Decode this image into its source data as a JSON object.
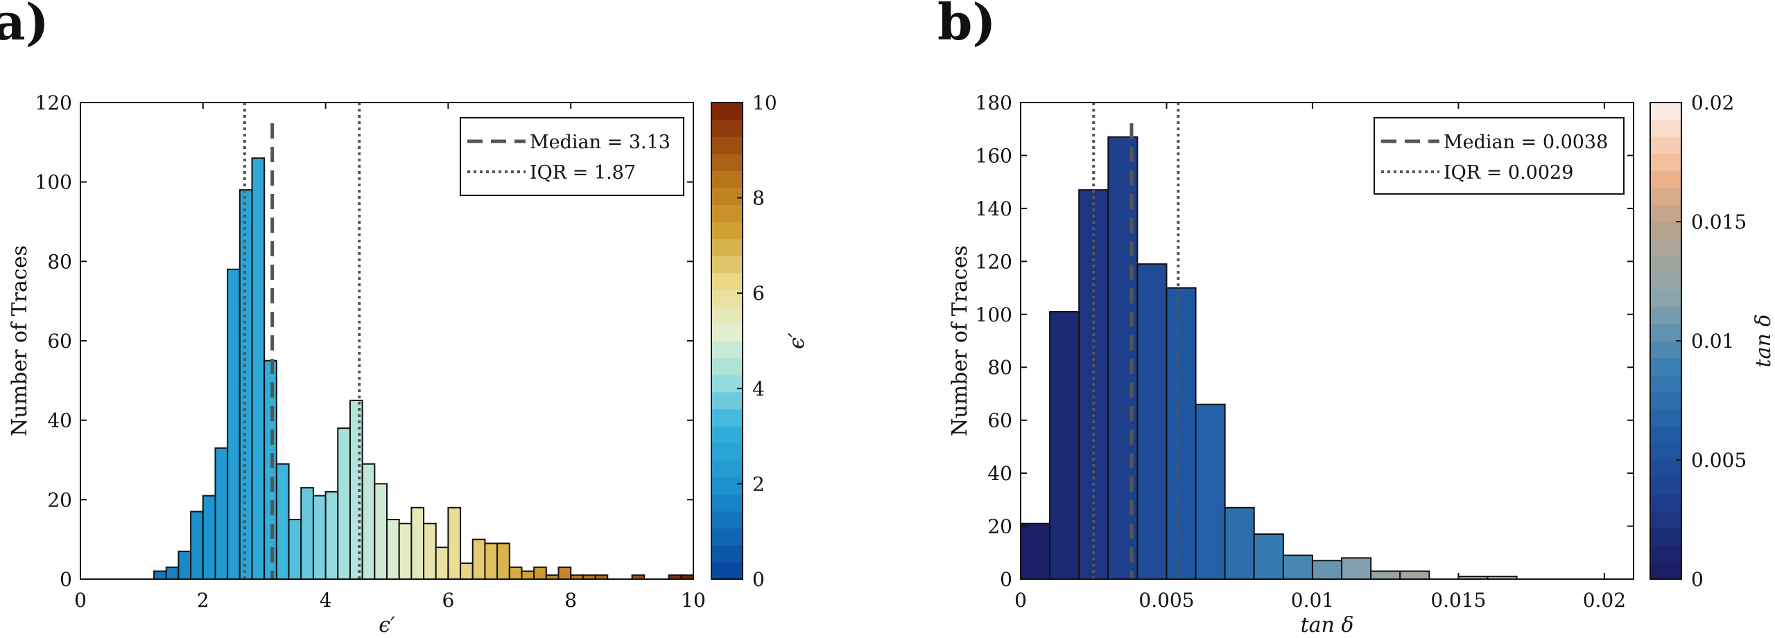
{
  "panels": {
    "a": {
      "label": "a)"
    },
    "b": {
      "label": "b)"
    }
  },
  "chart_data": [
    {
      "type": "bar",
      "title": "",
      "xlabel": "ϵ′",
      "ylabel": "Number of Traces",
      "xlim": [
        0,
        10
      ],
      "ylim": [
        0,
        120
      ],
      "xticks": [
        0,
        2,
        4,
        6,
        8,
        10
      ],
      "yticks": [
        0,
        20,
        40,
        60,
        80,
        100,
        120
      ],
      "bin_width": 0.2,
      "bins": [
        {
          "x": 1.2,
          "count": 2
        },
        {
          "x": 1.4,
          "count": 3
        },
        {
          "x": 1.6,
          "count": 7
        },
        {
          "x": 1.8,
          "count": 17
        },
        {
          "x": 2.0,
          "count": 21
        },
        {
          "x": 2.2,
          "count": 33
        },
        {
          "x": 2.4,
          "count": 78
        },
        {
          "x": 2.6,
          "count": 98
        },
        {
          "x": 2.8,
          "count": 106
        },
        {
          "x": 3.0,
          "count": 55
        },
        {
          "x": 3.2,
          "count": 29
        },
        {
          "x": 3.4,
          "count": 15
        },
        {
          "x": 3.6,
          "count": 23
        },
        {
          "x": 3.8,
          "count": 21
        },
        {
          "x": 4.0,
          "count": 22
        },
        {
          "x": 4.2,
          "count": 38
        },
        {
          "x": 4.4,
          "count": 45
        },
        {
          "x": 4.6,
          "count": 29
        },
        {
          "x": 4.8,
          "count": 24
        },
        {
          "x": 5.0,
          "count": 15
        },
        {
          "x": 5.2,
          "count": 14
        },
        {
          "x": 5.4,
          "count": 18
        },
        {
          "x": 5.6,
          "count": 14
        },
        {
          "x": 5.8,
          "count": 8
        },
        {
          "x": 6.0,
          "count": 18
        },
        {
          "x": 6.2,
          "count": 4
        },
        {
          "x": 6.4,
          "count": 10
        },
        {
          "x": 6.6,
          "count": 9
        },
        {
          "x": 6.8,
          "count": 9
        },
        {
          "x": 7.0,
          "count": 3
        },
        {
          "x": 7.2,
          "count": 2
        },
        {
          "x": 7.4,
          "count": 3
        },
        {
          "x": 7.6,
          "count": 1
        },
        {
          "x": 7.8,
          "count": 3
        },
        {
          "x": 8.0,
          "count": 1
        },
        {
          "x": 8.2,
          "count": 1
        },
        {
          "x": 8.4,
          "count": 1
        },
        {
          "x": 9.0,
          "count": 1
        },
        {
          "x": 9.6,
          "count": 1
        },
        {
          "x": 9.8,
          "count": 1
        }
      ],
      "median": 3.13,
      "iqr_lines": [
        2.68,
        4.55
      ],
      "legend": {
        "placement": "top-right",
        "entries": [
          "Median = 3.13",
          "IQR = 1.87"
        ]
      },
      "colorbar": {
        "label": "ϵ′",
        "range": [
          0,
          10
        ],
        "ticks": [
          0,
          2,
          4,
          6,
          8,
          10
        ],
        "ticklabels": [
          "0",
          "2",
          "4",
          "6",
          "8",
          "10"
        ],
        "colormap": "blue-teal-cream-orange-brown"
      }
    },
    {
      "type": "bar",
      "title": "",
      "xlabel": "tan δ",
      "ylabel": "Number of Traces",
      "xlim": [
        0,
        0.021
      ],
      "ylim": [
        0,
        180
      ],
      "xticks": [
        0,
        0.005,
        0.01,
        0.015,
        0.02
      ],
      "xticklabels": [
        "0",
        "0.005",
        "0.01",
        "0.015",
        "0.02"
      ],
      "yticks": [
        0,
        20,
        40,
        60,
        80,
        100,
        120,
        140,
        160,
        180
      ],
      "bin_width": 0.001,
      "bins": [
        {
          "x": 0.0,
          "count": 21
        },
        {
          "x": 0.001,
          "count": 101
        },
        {
          "x": 0.002,
          "count": 147
        },
        {
          "x": 0.003,
          "count": 167
        },
        {
          "x": 0.004,
          "count": 119
        },
        {
          "x": 0.005,
          "count": 110
        },
        {
          "x": 0.006,
          "count": 66
        },
        {
          "x": 0.007,
          "count": 27
        },
        {
          "x": 0.008,
          "count": 17
        },
        {
          "x": 0.009,
          "count": 9
        },
        {
          "x": 0.01,
          "count": 7
        },
        {
          "x": 0.011,
          "count": 8
        },
        {
          "x": 0.012,
          "count": 3
        },
        {
          "x": 0.013,
          "count": 3
        },
        {
          "x": 0.015,
          "count": 1
        },
        {
          "x": 0.016,
          "count": 1
        }
      ],
      "median": 0.0038,
      "iqr_lines": [
        0.0025,
        0.0054
      ],
      "legend": {
        "placement": "top-right",
        "entries": [
          "Median = 0.0038",
          "IQR = 0.0029"
        ]
      },
      "colorbar": {
        "label": "tan δ",
        "range": [
          0,
          0.02
        ],
        "ticks": [
          0,
          0.005,
          0.01,
          0.015,
          0.02
        ],
        "ticklabels": [
          "0",
          "0.005",
          "0.01",
          "0.015",
          "0.02"
        ],
        "colormap": "navy-blue-grey-peach"
      }
    }
  ]
}
